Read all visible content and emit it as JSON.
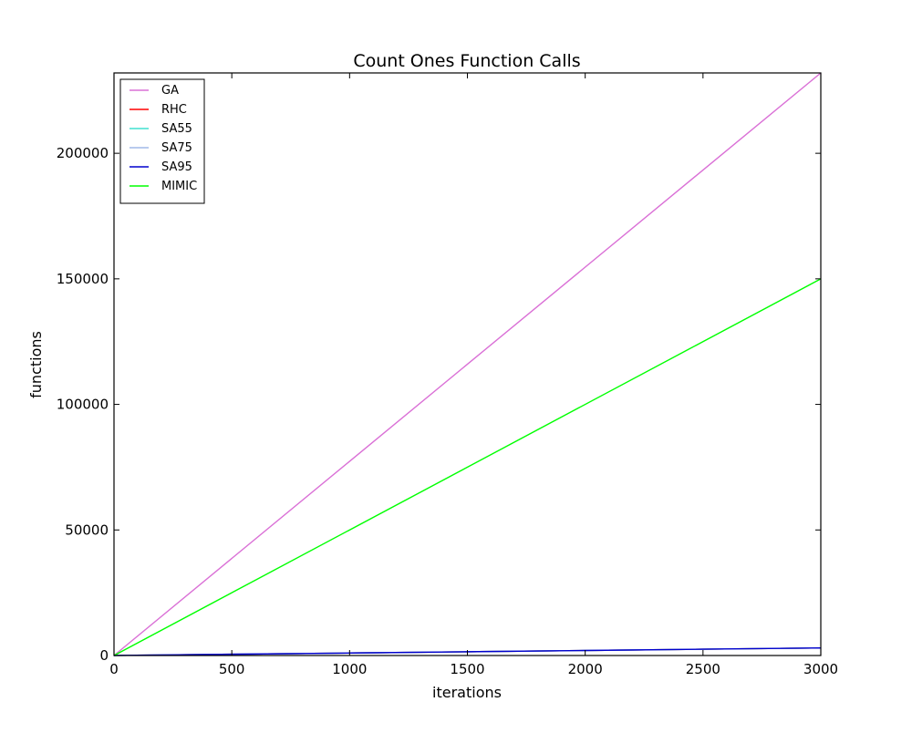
{
  "chart_data": {
    "type": "line",
    "title": "Count Ones Function Calls",
    "xlabel": "iterations",
    "ylabel": "functions",
    "xlim": [
      0,
      3000
    ],
    "ylim": [
      0,
      232000
    ],
    "xticks": [
      0,
      500,
      1000,
      1500,
      2000,
      2500,
      3000
    ],
    "xtick_labels": [
      "0",
      "500",
      "1000",
      "1500",
      "2000",
      "2500",
      "3000"
    ],
    "yticks": [
      0,
      50000,
      100000,
      150000,
      200000
    ],
    "ytick_labels": [
      "0",
      "50000",
      "100000",
      "150000",
      "200000"
    ],
    "grid": false,
    "legend_position": "top-left",
    "series": [
      {
        "name": "GA",
        "color": "#da70d6",
        "x": [
          0,
          3000
        ],
        "y": [
          0,
          232000
        ]
      },
      {
        "name": "RHC",
        "color": "#ff0000",
        "x": [
          0,
          500,
          1000,
          1500,
          2000,
          2500,
          3000
        ],
        "y": [
          0,
          500,
          1000,
          1500,
          2000,
          2500,
          3000
        ]
      },
      {
        "name": "SA55",
        "color": "#40e0d0",
        "x": [
          0,
          500,
          1000,
          1500,
          2000,
          2500,
          3000
        ],
        "y": [
          0,
          500,
          1000,
          1500,
          2000,
          2500,
          3000
        ]
      },
      {
        "name": "SA75",
        "color": "#a0b8e8",
        "x": [
          0,
          500,
          1000,
          1500,
          2000,
          2500,
          3000
        ],
        "y": [
          0,
          500,
          1000,
          1500,
          2000,
          2500,
          3000
        ]
      },
      {
        "name": "SA95",
        "color": "#0000cd",
        "x": [
          0,
          500,
          1000,
          1500,
          2000,
          2500,
          3000
        ],
        "y": [
          0,
          500,
          1000,
          1500,
          2000,
          2500,
          3000
        ]
      },
      {
        "name": "MIMIC",
        "color": "#00ff00",
        "x": [
          0,
          3000
        ],
        "y": [
          0,
          150000
        ]
      }
    ]
  }
}
